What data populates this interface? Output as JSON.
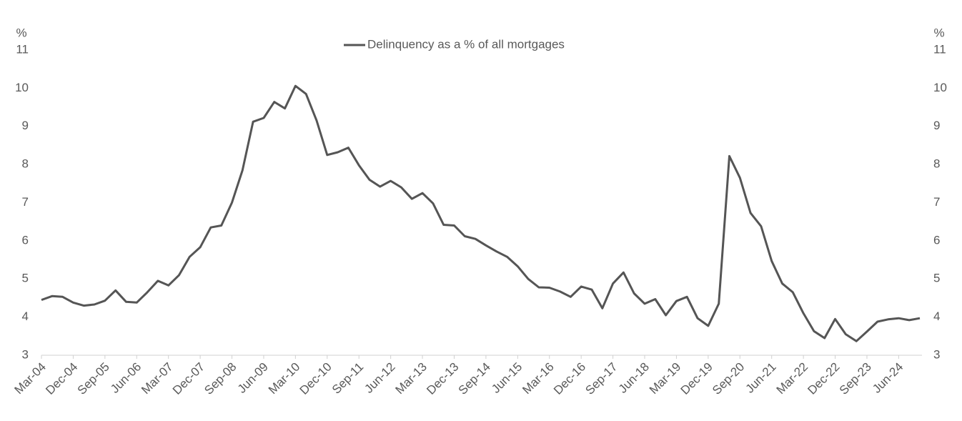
{
  "chart_data": {
    "type": "line",
    "legend": "top",
    "y_label": "%",
    "y2_label": "%",
    "categories": [
      "Mar-04",
      null,
      null,
      "Dec-04",
      null,
      null,
      "Sep-05",
      null,
      null,
      "Jun-06",
      null,
      null,
      "Mar-07",
      null,
      null,
      "Dec-07",
      null,
      null,
      "Sep-08",
      null,
      null,
      "Jun-09",
      null,
      null,
      "Mar-10",
      null,
      null,
      "Dec-10",
      null,
      null,
      "Sep-11",
      null,
      null,
      "Jun-12",
      null,
      null,
      "Mar-13",
      null,
      null,
      "Dec-13",
      null,
      null,
      "Sep-14",
      null,
      null,
      "Jun-15",
      null,
      null,
      "Mar-16",
      null,
      null,
      "Dec-16",
      null,
      null,
      "Sep-17",
      null,
      null,
      "Jun-18",
      null,
      null,
      "Mar-19",
      null,
      null,
      "Dec-19",
      null,
      null,
      "Sep-20",
      null,
      null,
      "Jun-21",
      null,
      null,
      "Mar-22",
      null,
      null,
      "Dec-22",
      null,
      null,
      "Sep-23",
      null,
      null,
      "Jun-24",
      null,
      null
    ],
    "series": [
      {
        "name": "Delinquency as a % of all mortgages",
        "color": "#555555",
        "values": [
          4.45,
          4.55,
          4.53,
          4.38,
          4.3,
          4.33,
          4.43,
          4.7,
          4.4,
          4.38,
          4.65,
          4.95,
          4.83,
          5.1,
          5.58,
          5.83,
          6.35,
          6.4,
          7.0,
          7.85,
          9.12,
          9.22,
          9.64,
          9.47,
          10.06,
          9.85,
          9.15,
          8.25,
          8.32,
          8.44,
          7.98,
          7.6,
          7.42,
          7.57,
          7.4,
          7.1,
          7.25,
          6.98,
          6.42,
          6.4,
          6.12,
          6.05,
          5.88,
          5.72,
          5.58,
          5.33,
          5.0,
          4.78,
          4.77,
          4.67,
          4.53,
          4.8,
          4.72,
          4.23,
          4.88,
          5.17,
          4.62,
          4.35,
          4.47,
          4.05,
          4.42,
          4.53,
          3.97,
          3.77,
          4.35,
          8.22,
          7.65,
          6.73,
          6.38,
          5.47,
          4.88,
          4.65,
          4.1,
          3.63,
          3.45,
          3.95,
          3.55,
          3.37,
          3.62,
          3.88,
          3.94,
          3.97,
          3.92,
          3.97
        ]
      }
    ],
    "ylim": [
      3,
      11
    ],
    "yticks": [
      3,
      4,
      5,
      6,
      7,
      8,
      9,
      10,
      11
    ],
    "y2lim": [
      3,
      11
    ],
    "y2ticks": [
      3,
      4,
      5,
      6,
      7,
      8,
      9,
      10,
      11
    ]
  }
}
